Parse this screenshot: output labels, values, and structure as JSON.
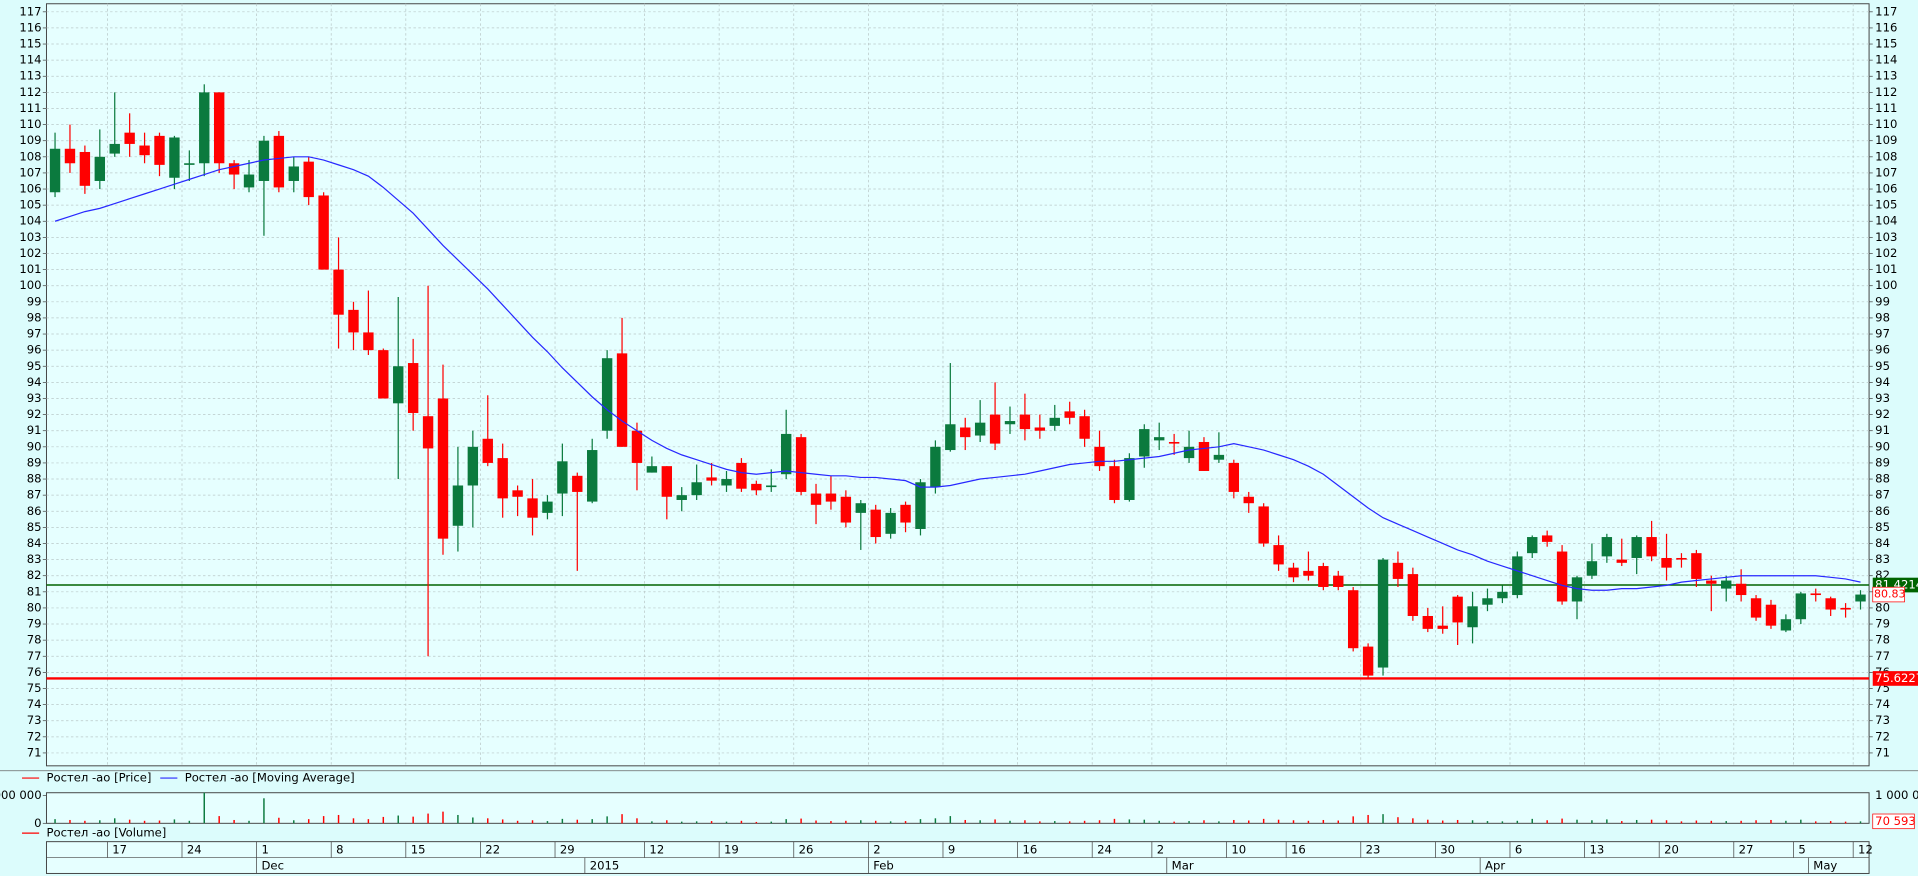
{
  "chart_data": {
    "type": "candlestick",
    "up_color": "#0b7a3e",
    "down_color": "#ff0000",
    "categories": [
      null,
      null,
      null,
      null,
      "17",
      null,
      null,
      null,
      null,
      "24",
      null,
      null,
      null,
      null,
      "1",
      null,
      null,
      null,
      null,
      "8",
      null,
      null,
      null,
      null,
      "15",
      null,
      null,
      null,
      null,
      "22",
      null,
      null,
      null,
      null,
      "29",
      null,
      null,
      null,
      null,
      null,
      "12",
      null,
      null,
      null,
      null,
      "19",
      null,
      null,
      null,
      null,
      "26",
      null,
      null,
      null,
      null,
      "2",
      null,
      null,
      null,
      null,
      "9",
      null,
      null,
      null,
      null,
      "16",
      null,
      null,
      null,
      null,
      "24",
      null,
      null,
      null,
      "2",
      null,
      null,
      null,
      null,
      "10",
      null,
      null,
      null,
      "16",
      null,
      null,
      null,
      null,
      "23",
      null,
      null,
      null,
      null,
      "30",
      null,
      null,
      null,
      null,
      "6",
      null,
      null,
      null,
      null,
      "13",
      null,
      null,
      null,
      null,
      "20",
      null,
      null,
      null,
      null,
      "27",
      null,
      null,
      null,
      "5",
      null,
      null,
      null,
      "12"
    ],
    "month_categories": [
      null,
      null,
      null,
      null,
      null,
      null,
      null,
      null,
      null,
      null,
      null,
      null,
      null,
      null,
      "Dec",
      null,
      null,
      null,
      null,
      null,
      null,
      null,
      null,
      null,
      null,
      null,
      null,
      null,
      null,
      null,
      null,
      null,
      null,
      null,
      null,
      null,
      "2015",
      null,
      null,
      null,
      null,
      null,
      null,
      null,
      null,
      null,
      null,
      null,
      null,
      null,
      null,
      null,
      null,
      null,
      null,
      "Feb",
      null,
      null,
      null,
      null,
      null,
      null,
      null,
      null,
      null,
      null,
      null,
      null,
      null,
      null,
      null,
      null,
      null,
      null,
      null,
      "Mar",
      null,
      null,
      null,
      null,
      null,
      null,
      null,
      null,
      null,
      null,
      null,
      null,
      null,
      null,
      null,
      null,
      null,
      null,
      null,
      null,
      "Apr",
      null,
      null,
      null,
      null,
      null,
      null,
      null,
      null,
      null,
      null,
      null,
      null,
      null,
      null,
      null,
      null,
      null,
      null,
      null,
      null,
      null,
      "May",
      null,
      null,
      null,
      null
    ],
    "ylim": [
      70.2,
      117.5
    ],
    "yticks": [
      71,
      72,
      73,
      74,
      75,
      76,
      77,
      78,
      79,
      80,
      81,
      82,
      83,
      84,
      85,
      86,
      87,
      88,
      89,
      90,
      91,
      92,
      93,
      94,
      95,
      96,
      97,
      98,
      99,
      100,
      101,
      102,
      103,
      104,
      105,
      106,
      107,
      108,
      109,
      110,
      111,
      112,
      113,
      114,
      115,
      116,
      117
    ],
    "grid": true,
    "series": [
      {
        "name": "Ростел -ао [Price]",
        "color": "#ff0000",
        "open": [
          105.8,
          108.5,
          108.3,
          106.5,
          108.2,
          109.5,
          108.7,
          109.3,
          106.7,
          107.5,
          107.6,
          112,
          107.6,
          106.1,
          106.5,
          109.3,
          106.5,
          107.7,
          105.6,
          101,
          98.5,
          97.1,
          96,
          92.7,
          95.2,
          91.9,
          93,
          85.1,
          87.6,
          90.5,
          89.3,
          87.3,
          86.8,
          85.9,
          87.1,
          88.2,
          86.6,
          91,
          95.8,
          91,
          88.4,
          88.8,
          86.7,
          87,
          88.1,
          87.6,
          89,
          87.7,
          87.5,
          88.3,
          90.6,
          87.1,
          87.1,
          86.9,
          85.9,
          86.1,
          84.6,
          86.4,
          84.9,
          87.5,
          89.8,
          91.2,
          90.7,
          92,
          91.4,
          92,
          91.2,
          91.3,
          92.2,
          91.9,
          90,
          88.8,
          86.7,
          89.4,
          90.4,
          90.3,
          89.3,
          90.3,
          89.2,
          89,
          86.9,
          86.3,
          83.9,
          82.5,
          82.3,
          82.6,
          82,
          81.1,
          77.6,
          76.3,
          82.8,
          82.1,
          79.5,
          78.9,
          80.7,
          78.8,
          80.2,
          80.6,
          80.8,
          83.4,
          84.5,
          83.5,
          80.4,
          82,
          83.2,
          83,
          83.1,
          84.4,
          83.1,
          83.1,
          83.4,
          81.7,
          81.2,
          81.5,
          80.6,
          80.2,
          78.6,
          79.3,
          80.9,
          80.6,
          80,
          80.4
        ],
        "high": [
          109.5,
          110,
          108.7,
          109.7,
          112,
          110.7,
          109.5,
          109.5,
          109.3,
          108.4,
          112.5,
          112,
          107.8,
          107.8,
          109.3,
          109.6,
          108,
          108,
          105.8,
          103,
          99,
          99.7,
          96.1,
          99.3,
          96.7,
          100,
          95.1,
          90,
          91,
          93.2,
          90.2,
          87.6,
          88,
          87,
          90.2,
          88.4,
          90.5,
          96,
          98,
          91.5,
          89.4,
          88.8,
          87.5,
          88.9,
          89,
          88.5,
          89.3,
          87.9,
          88.6,
          92.3,
          90.8,
          87.7,
          88.2,
          87.3,
          86.7,
          86.4,
          86.2,
          86.6,
          88,
          90.4,
          95.2,
          91.8,
          92.9,
          94,
          92.5,
          93.3,
          92,
          92.6,
          92.8,
          92.3,
          91,
          89.2,
          89.6,
          91.4,
          91.5,
          90.8,
          91,
          90.6,
          90.9,
          89.2,
          87.2,
          86.5,
          84.5,
          82.8,
          83.5,
          82.8,
          82.3,
          81.3,
          77.8,
          83.1,
          83.5,
          82.5,
          80,
          80.1,
          80.8,
          81,
          81.2,
          81.4,
          83.5,
          84.5,
          84.8,
          83.9,
          82,
          84,
          84.6,
          84.3,
          84.5,
          85.4,
          84.6,
          83.4,
          83.6,
          82,
          82,
          82.4,
          80.8,
          80.5,
          79.6,
          81,
          81.2,
          80.7,
          80.3,
          81.1
        ],
        "low": [
          105.5,
          107,
          105.7,
          106,
          108,
          108,
          107.6,
          106.8,
          106,
          106.5,
          106.8,
          107,
          106,
          105.8,
          103.1,
          105.8,
          105.8,
          105,
          101,
          96.1,
          96,
          95.7,
          93,
          88,
          91,
          77,
          83.3,
          83.5,
          85,
          88.8,
          85.6,
          85.7,
          84.5,
          85.5,
          85.7,
          82.3,
          86.5,
          90.5,
          90,
          87.3,
          88.4,
          85.5,
          86,
          86.7,
          87.6,
          87.2,
          87.2,
          87,
          87.2,
          88,
          87,
          85.2,
          86.1,
          85,
          83.6,
          84,
          84.3,
          84.7,
          84.5,
          87.1,
          89.7,
          89.8,
          90.3,
          89.8,
          90.8,
          90.4,
          90.5,
          91,
          91.4,
          90,
          88.5,
          86.5,
          86.6,
          88.7,
          89.8,
          89.5,
          89,
          88.5,
          89,
          86.8,
          85.9,
          83.8,
          82.3,
          81.6,
          81.7,
          81.1,
          81.1,
          77.3,
          75.6,
          75.8,
          81.3,
          79.2,
          78.5,
          78.4,
          77.7,
          77.8,
          79.8,
          80.3,
          80.6,
          83.1,
          83.8,
          80.2,
          79.3,
          81.8,
          82.8,
          82.6,
          82.1,
          82.9,
          81.7,
          82.5,
          81.3,
          79.8,
          80.4,
          80.4,
          79.2,
          78.7,
          78.5,
          79,
          80.4,
          79.5,
          79.4,
          79.9
        ],
        "close": [
          108.5,
          107.6,
          106.2,
          108,
          108.8,
          108.8,
          108.1,
          107.5,
          109.2,
          107.6,
          112,
          107.6,
          106.9,
          106.9,
          109,
          106.1,
          107.4,
          105.5,
          101,
          98.2,
          97.1,
          96,
          93,
          95,
          92.1,
          89.9,
          84.3,
          87.6,
          90,
          89,
          86.8,
          86.9,
          85.6,
          86.6,
          89.1,
          87.2,
          89.8,
          95.5,
          90,
          89,
          88.8,
          86.9,
          87,
          87.8,
          87.9,
          88,
          87.4,
          87.3,
          87.6,
          90.8,
          87.2,
          86.4,
          86.6,
          85.3,
          86.5,
          84.4,
          85.9,
          85.3,
          87.8,
          90,
          91.4,
          90.6,
          91.5,
          90.2,
          91.6,
          91.1,
          91,
          91.8,
          91.8,
          90.5,
          88.8,
          86.7,
          89.3,
          91.1,
          90.6,
          90.2,
          90,
          88.5,
          89.5,
          87.2,
          86.5,
          84,
          82.7,
          81.9,
          82,
          81.3,
          81.3,
          77.5,
          75.8,
          83,
          81.8,
          79.5,
          78.7,
          78.7,
          79.1,
          80.1,
          80.6,
          81,
          83.2,
          84.4,
          84.1,
          80.4,
          81.9,
          82.9,
          84.4,
          82.8,
          84.4,
          83.2,
          82.5,
          83,
          81.8,
          81.5,
          81.7,
          80.8,
          79.4,
          78.9,
          79.3,
          80.9,
          80.8,
          79.9,
          79.9,
          80.83
        ]
      },
      {
        "name": "Ростел -ао [Moving Average]",
        "color": "#2828ff",
        "values": [
          104,
          104.3,
          104.6,
          104.8,
          105.1,
          105.4,
          105.7,
          106,
          106.3,
          106.6,
          106.9,
          107.2,
          107.4,
          107.6,
          107.8,
          107.9,
          108,
          108,
          107.8,
          107.5,
          107.2,
          106.8,
          106.1,
          105.3,
          104.5,
          103.5,
          102.5,
          101.6,
          100.7,
          99.8,
          98.8,
          97.8,
          96.8,
          95.9,
          94.9,
          94,
          93.1,
          92.3,
          91.6,
          91,
          90.4,
          89.9,
          89.5,
          89.2,
          88.9,
          88.6,
          88.4,
          88.3,
          88.4,
          88.5,
          88.4,
          88.3,
          88.2,
          88.2,
          88.1,
          88.1,
          88,
          87.9,
          87.5,
          87.5,
          87.6,
          87.8,
          88,
          88.1,
          88.2,
          88.3,
          88.5,
          88.7,
          88.9,
          89,
          89.1,
          89.1,
          89.2,
          89.3,
          89.4,
          89.6,
          89.8,
          89.9,
          90,
          90.2,
          90,
          89.8,
          89.5,
          89.2,
          88.8,
          88.3,
          87.6,
          86.9,
          86.2,
          85.6,
          85.2,
          84.8,
          84.4,
          84,
          83.6,
          83.3,
          82.9,
          82.6,
          82.3,
          82,
          81.7,
          81.4,
          81.2,
          81.1,
          81.1,
          81.2,
          81.2,
          81.3,
          81.4,
          81.6,
          81.7,
          81.8,
          81.9,
          82,
          82,
          82,
          82,
          82,
          82,
          81.9,
          81.8,
          81.6
        ]
      }
    ],
    "levels": [
      {
        "value": 81.4214,
        "color": "#006400"
      },
      {
        "value": 75.6227,
        "color": "#ff0000"
      }
    ],
    "volume": {
      "name": "Ростел -ао [Volume]",
      "color": "#ff0000",
      "ylim": [
        0,
        1100000
      ],
      "yticks": [
        {
          "value": 0,
          "label": "0"
        },
        {
          "value": 1000000,
          "label": "1 000 000"
        }
      ],
      "values": [
        150000,
        120000,
        90000,
        110000,
        180000,
        130000,
        90000,
        100000,
        140000,
        90000,
        1100000,
        260000,
        120000,
        90000,
        900000,
        200000,
        110000,
        150000,
        260000,
        300000,
        180000,
        150000,
        230000,
        280000,
        240000,
        350000,
        420000,
        300000,
        210000,
        180000,
        140000,
        90000,
        110000,
        80000,
        160000,
        130000,
        150000,
        250000,
        330000,
        180000,
        70000,
        110000,
        60000,
        70000,
        80000,
        60000,
        90000,
        50000,
        60000,
        150000,
        170000,
        100000,
        80000,
        90000,
        110000,
        90000,
        70000,
        80000,
        150000,
        180000,
        260000,
        120000,
        110000,
        140000,
        90000,
        110000,
        70000,
        80000,
        70000,
        90000,
        110000,
        160000,
        140000,
        130000,
        90000,
        60000,
        80000,
        110000,
        70000,
        120000,
        100000,
        160000,
        130000,
        110000,
        90000,
        120000,
        100000,
        250000,
        300000,
        330000,
        220000,
        180000,
        130000,
        100000,
        120000,
        110000,
        80000,
        70000,
        90000,
        160000,
        110000,
        170000,
        130000,
        110000,
        140000,
        80000,
        120000,
        130000,
        110000,
        70000,
        100000,
        90000,
        80000,
        90000,
        110000,
        120000,
        90000,
        130000,
        70000,
        80000,
        60000,
        70593
      ],
      "last_label": "70 593"
    }
  }
}
